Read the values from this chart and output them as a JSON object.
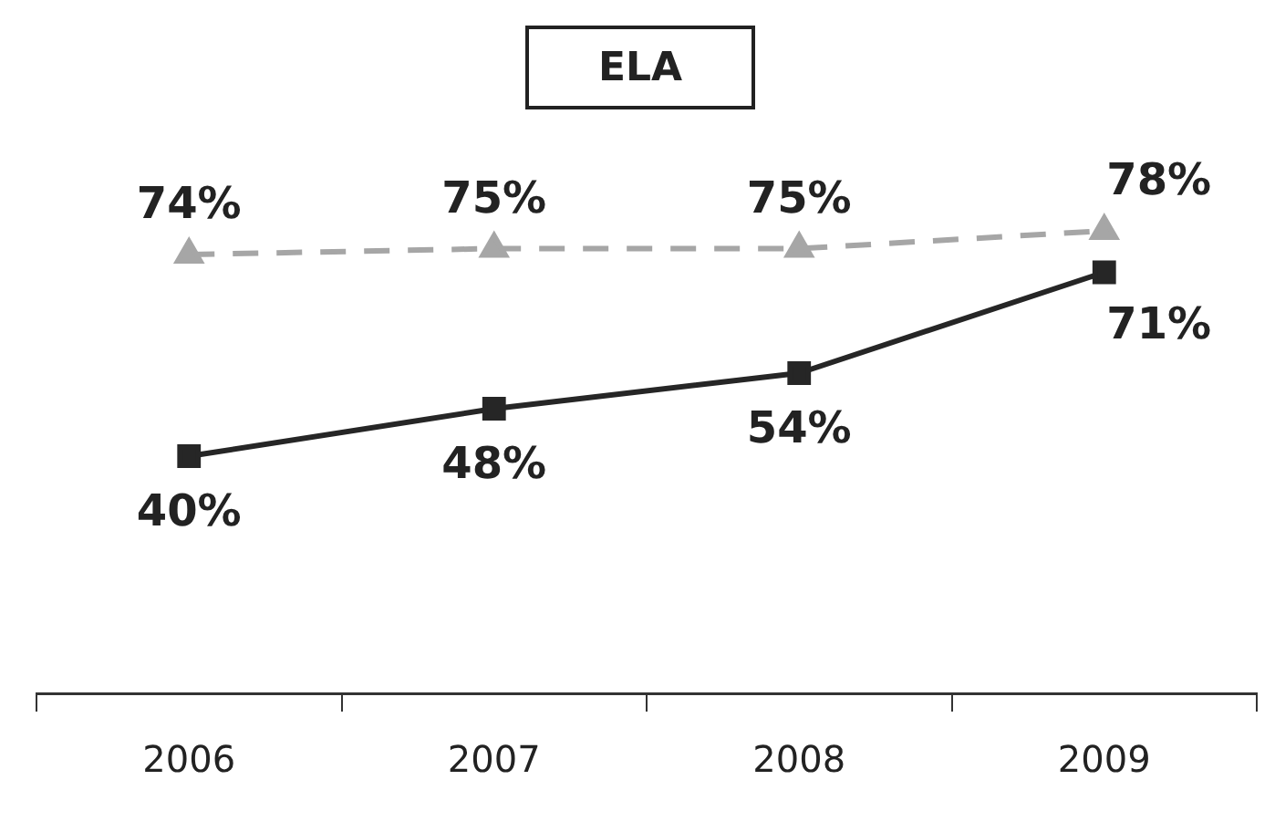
{
  "chart_data": {
    "type": "line",
    "title": "ELA",
    "categories": [
      "2006",
      "2007",
      "2008",
      "2009"
    ],
    "series": [
      {
        "color": "#a6a6a6",
        "values": [
          74,
          75,
          75,
          78
        ],
        "value_labels": [
          "74%",
          "75%",
          "75%",
          "78%"
        ],
        "marker": "triangle",
        "line_style": "dashed"
      },
      {
        "color": "#262626",
        "values": [
          40,
          48,
          54,
          71
        ],
        "value_labels": [
          "40%",
          "48%",
          "54%",
          "71%"
        ],
        "marker": "square",
        "line_style": "solid"
      }
    ],
    "relative": false,
    "legend": false,
    "grid": false
  }
}
